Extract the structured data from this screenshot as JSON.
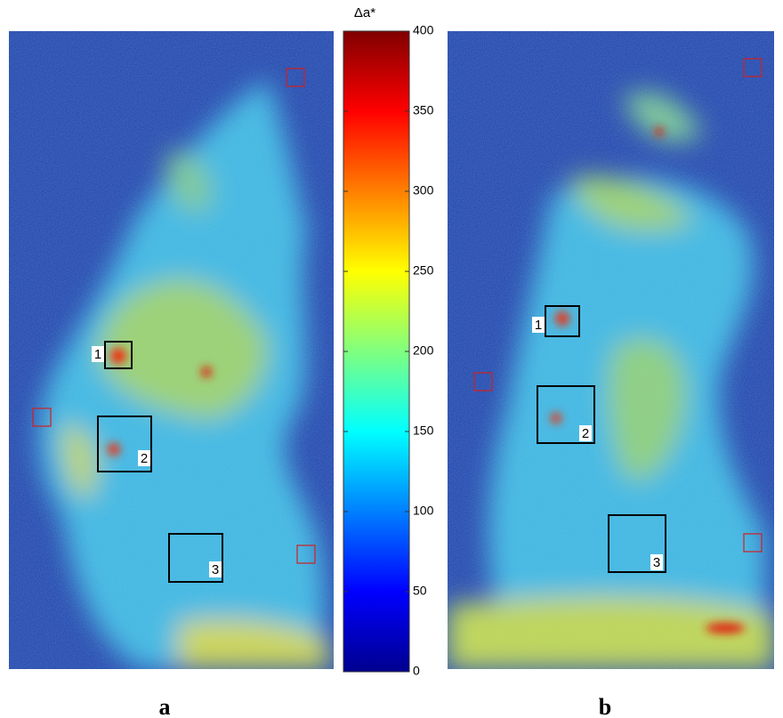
{
  "colorbar": {
    "title": "Δa*",
    "lim": [
      0,
      400
    ],
    "ticks": [
      0,
      50,
      100,
      150,
      200,
      250,
      300,
      350,
      400
    ]
  },
  "panels": [
    {
      "label": "a",
      "regions": [
        "1",
        "2",
        "3"
      ]
    },
    {
      "label": "b",
      "regions": [
        "1",
        "2",
        "3"
      ]
    }
  ]
}
